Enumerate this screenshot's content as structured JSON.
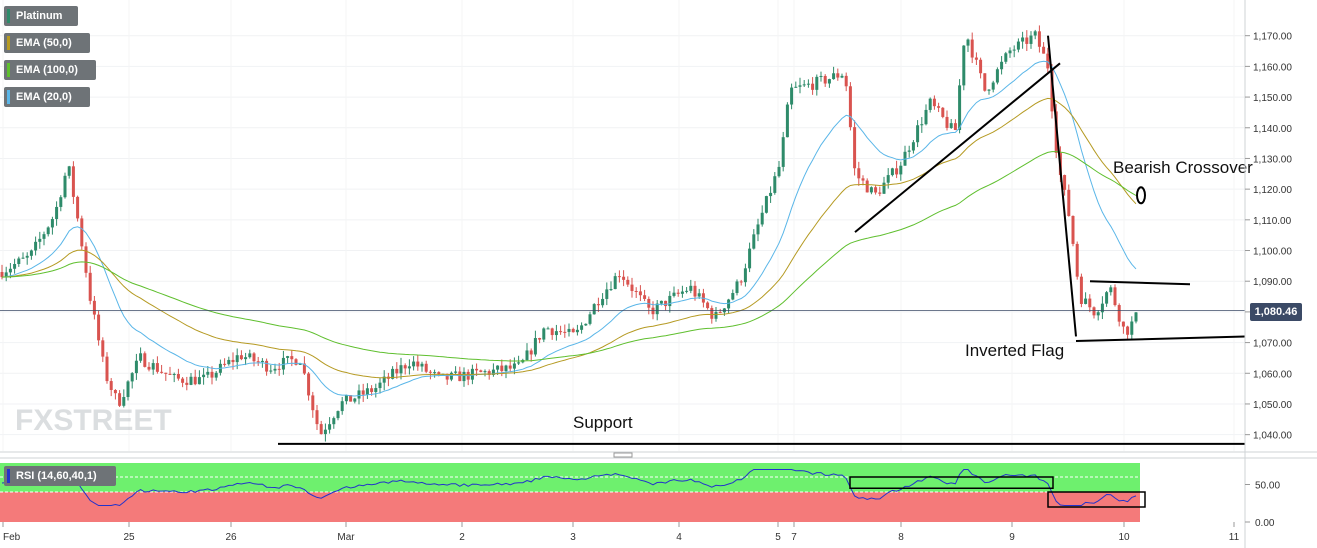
{
  "chart_data": [
    {
      "type": "candlestick",
      "series": [
        {
          "name": "Platinum"
        },
        {
          "name": "EMA (50,0)",
          "color": "#b59a22"
        },
        {
          "name": "EMA (100,0)",
          "color": "#5fbf2e"
        },
        {
          "name": "EMA (20,0)",
          "color": "#5ab6e8"
        }
      ],
      "ylim": [
        1035,
        1180
      ],
      "yticks": [
        "1,040.00",
        "1,050.00",
        "1,060.00",
        "1,070.00",
        "1,080.00",
        "1,090.00",
        "1,100.00",
        "1,110.00",
        "1,120.00",
        "1,130.00",
        "1,140.00",
        "1,150.00",
        "1,160.00",
        "1,170.00"
      ],
      "xticks": [
        "Feb",
        "25",
        "26",
        "Mar",
        "2",
        "3",
        "4",
        "5",
        "7",
        "8",
        "9",
        "10",
        "11"
      ],
      "current_price": "1,080.46",
      "annotations": [
        "Bearish Crossover",
        "Inverted Flag",
        "Support"
      ],
      "support_level": 1037,
      "up_color": "#2e8b6a",
      "down_color": "#d9534f"
    },
    {
      "type": "line",
      "series": [
        {
          "name": "RSI (14,60,40,1)",
          "color": "#2233cc"
        }
      ],
      "ylim": [
        0,
        80
      ],
      "yticks": [
        "0.00",
        "50.00"
      ],
      "overbought_zone_color": "#6ef06e",
      "oversold_zone_color": "#f47a7a"
    }
  ],
  "watermark": "FXSTREET"
}
